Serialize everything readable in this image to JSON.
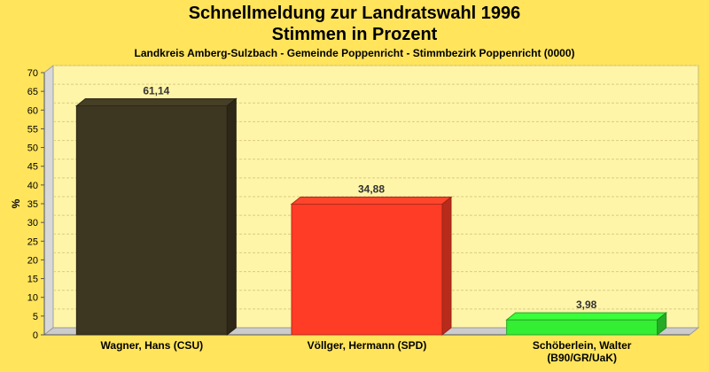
{
  "chart_data": {
    "type": "bar",
    "title": "Schnellmeldung zur Landratswahl 1996",
    "subtitle": "Stimmen in Prozent",
    "caption": "Landkreis Amberg-Sulzbach - Gemeinde Poppenricht - Stimmbezirk Poppenricht (0000)",
    "ylabel": "%",
    "xlabel": "",
    "ylim": [
      0,
      70
    ],
    "yticks": [
      0,
      5,
      10,
      15,
      20,
      25,
      30,
      35,
      40,
      45,
      50,
      55,
      60,
      65,
      70
    ],
    "grid": true,
    "categories": [
      [
        "Wagner, Hans (CSU)"
      ],
      [
        "Völlger, Hermann (SPD)"
      ],
      [
        "Schöberlein, Walter",
        "(B90/GR/UaK)"
      ]
    ],
    "values": [
      61.14,
      34.88,
      3.98
    ],
    "value_labels": [
      "61,14",
      "34,88",
      "3,98"
    ],
    "colors": [
      "#3d3620",
      "#ff3c26",
      "#33ee33"
    ]
  }
}
